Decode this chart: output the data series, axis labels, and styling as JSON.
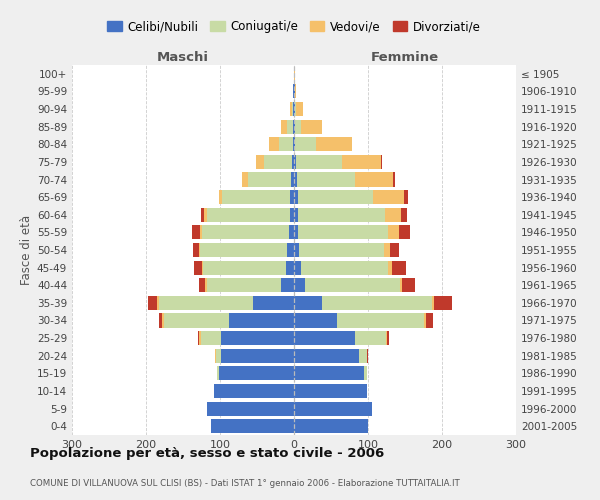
{
  "age_groups": [
    "0-4",
    "5-9",
    "10-14",
    "15-19",
    "20-24",
    "25-29",
    "30-34",
    "35-39",
    "40-44",
    "45-49",
    "50-54",
    "55-59",
    "60-64",
    "65-69",
    "70-74",
    "75-79",
    "80-84",
    "85-89",
    "90-94",
    "95-99",
    "100+"
  ],
  "birth_years": [
    "2001-2005",
    "1996-2000",
    "1991-1995",
    "1986-1990",
    "1981-1985",
    "1976-1980",
    "1971-1975",
    "1966-1970",
    "1961-1965",
    "1956-1960",
    "1951-1955",
    "1946-1950",
    "1941-1945",
    "1936-1940",
    "1931-1935",
    "1926-1930",
    "1921-1925",
    "1916-1920",
    "1911-1915",
    "1906-1910",
    "≤ 1905"
  ],
  "male_celibe": [
    112,
    118,
    108,
    102,
    98,
    98,
    88,
    55,
    18,
    11,
    9,
    7,
    6,
    5,
    4,
    3,
    2,
    1,
    1,
    1,
    0
  ],
  "male_coniugato": [
    0,
    0,
    0,
    2,
    8,
    28,
    88,
    128,
    100,
    112,
    118,
    118,
    112,
    92,
    58,
    38,
    18,
    8,
    2,
    0,
    0
  ],
  "male_vedovo": [
    0,
    0,
    0,
    0,
    1,
    2,
    2,
    2,
    2,
    2,
    2,
    2,
    3,
    4,
    8,
    10,
    14,
    8,
    2,
    0,
    0
  ],
  "male_divorziato": [
    0,
    0,
    0,
    0,
    0,
    2,
    5,
    12,
    8,
    10,
    8,
    11,
    4,
    0,
    0,
    0,
    0,
    0,
    0,
    0,
    0
  ],
  "female_celibe": [
    100,
    105,
    98,
    95,
    88,
    82,
    58,
    38,
    15,
    9,
    7,
    5,
    5,
    5,
    4,
    3,
    2,
    2,
    1,
    1,
    0
  ],
  "female_coniugato": [
    0,
    0,
    0,
    3,
    10,
    42,
    118,
    148,
    128,
    118,
    115,
    122,
    118,
    102,
    78,
    62,
    28,
    8,
    2,
    0,
    0
  ],
  "female_vedovo": [
    0,
    0,
    0,
    0,
    1,
    2,
    2,
    3,
    3,
    5,
    8,
    15,
    22,
    42,
    52,
    52,
    48,
    28,
    9,
    2,
    1
  ],
  "female_divorziato": [
    0,
    0,
    0,
    0,
    1,
    3,
    10,
    25,
    18,
    20,
    12,
    15,
    8,
    5,
    2,
    2,
    0,
    0,
    0,
    0,
    0
  ],
  "color_celibe": "#4472c4",
  "color_coniugato": "#c8dba5",
  "color_vedovo": "#f5c06a",
  "color_divorziato": "#c0392b",
  "title": "Popolazione per età, sesso e stato civile - 2006",
  "subtitle": "COMUNE DI VILLANUOVA SUL CLISI (BS) - Dati ISTAT 1° gennaio 2006 - Elaborazione TUTTAITALIA.IT",
  "label_maschi": "Maschi",
  "label_femmine": "Femmine",
  "ylabel_left": "Fasce di età",
  "xlim": 300,
  "bg_color": "#efefef",
  "plot_bg": "#ffffff",
  "legend_labels": [
    "Celibi/Nubili",
    "Coniugati/e",
    "Vedovi/e",
    "Divorziati/e"
  ]
}
